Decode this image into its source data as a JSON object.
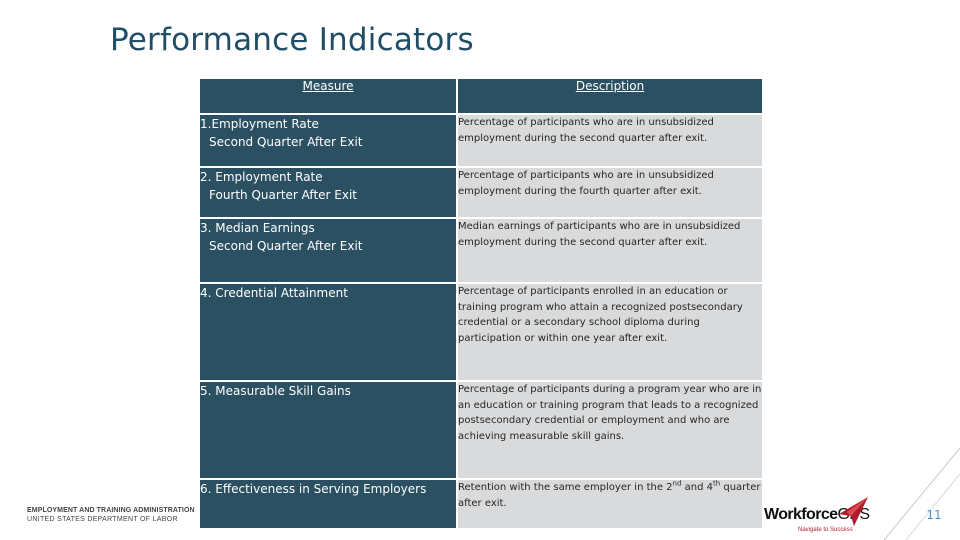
{
  "title": "Performance Indicators",
  "table": {
    "headers": {
      "measure": "Measure",
      "description": "Description"
    },
    "rows": [
      {
        "measure_line1": "1.Employment Rate",
        "measure_line2": "Second Quarter After Exit",
        "description": "Percentage of participants who are in unsubsidized employment during the second quarter after exit."
      },
      {
        "measure_line1": "2. Employment Rate",
        "measure_line2": "Fourth Quarter After Exit",
        "description": "Percentage of participants who are in unsubsidized employment during the fourth quarter after exit."
      },
      {
        "measure_line1": "3. Median Earnings",
        "measure_line2": "Second Quarter After Exit",
        "description": "Median earnings of participants who are in unsubsidized employment during the second quarter after exit."
      },
      {
        "measure_line1": "4. Credential Attainment",
        "measure_line2": "",
        "description": "Percentage of participants enrolled in an education or training program who attain a recognized postsecondary credential or a secondary school diploma during participation or within one year after exit."
      },
      {
        "measure_line1": "5. Measurable Skill Gains",
        "measure_line2": "",
        "description": "Percentage of participants during a program year who are in an education or training program that leads to a recognized postsecondary credential or employment and who are achieving measurable skill gains."
      },
      {
        "measure_line1": "6. Effectiveness in Serving Employers",
        "measure_line2": "",
        "description_parts": [
          "Retention with the same employer in the 2",
          "nd",
          " and 4",
          "th",
          " quarter after exit."
        ]
      }
    ]
  },
  "footer": {
    "agency_line1": "EMPLOYMENT AND TRAINING ADMINISTRATION",
    "agency_line2": "UNITED STATES DEPARTMENT OF LABOR",
    "logo_workforce": "Workforce",
    "logo_gps": "GPS",
    "logo_tagline": "Navigate to Success",
    "page_number": "11"
  },
  "colors": {
    "title": "#1f4e66",
    "measure_bg": "#2a5062",
    "description_bg": "#d9dadb",
    "page_number": "#4b92c8",
    "logo_red": "#b01c2a"
  }
}
